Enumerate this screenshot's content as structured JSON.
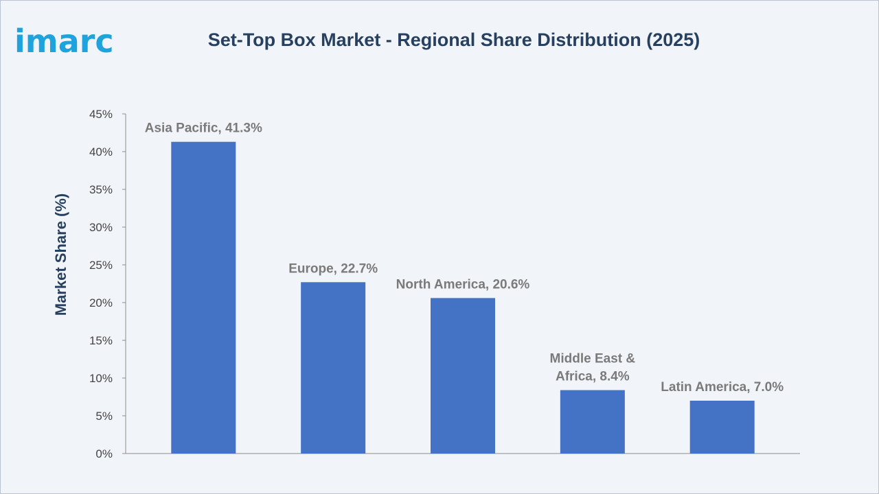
{
  "brand": {
    "logo_text": "imarc"
  },
  "colors": {
    "bar": "#4472c4",
    "title": "#27405f",
    "logo": "#1fa3dc",
    "background": "#f1f4f8"
  },
  "chart_data": {
    "type": "bar",
    "title": "Set-Top Box Market - Regional Share Distribution (2025)",
    "xlabel": "",
    "ylabel": "Market Share (%)",
    "ylim": [
      0,
      45
    ],
    "yticks": [
      "0%",
      "5%",
      "10%",
      "15%",
      "20%",
      "25%",
      "30%",
      "35%",
      "40%",
      "45%"
    ],
    "categories": [
      "Asia Pacific",
      "Europe",
      "North America",
      "Middle East & Africa",
      "Latin America"
    ],
    "values": [
      41.3,
      22.7,
      20.6,
      8.4,
      7.0
    ],
    "data_labels": [
      [
        "Asia Pacific, 41.3%"
      ],
      [
        "Europe, 22.7%"
      ],
      [
        "North America, 20.6%"
      ],
      [
        "Middle East &",
        "Africa, 8.4%"
      ],
      [
        "Latin America, 7.0%"
      ]
    ],
    "grid": false,
    "legend": "none"
  }
}
